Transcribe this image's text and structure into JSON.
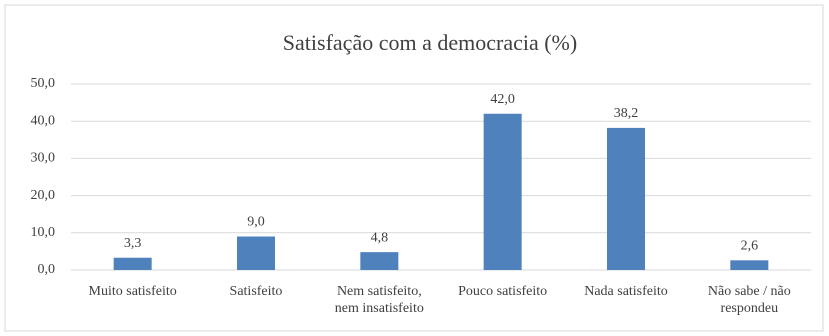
{
  "chart_data": {
    "type": "bar",
    "title": "Satisfação com a democracia (%)",
    "categories": [
      "Muito satisfeito",
      "Satisfeito",
      "Nem satisfeito,\nnem insatisfeito",
      "Pouco satisfeito",
      "Nada satisfeito",
      "Não sabe / não\nrespondeu"
    ],
    "values": [
      3.3,
      9.0,
      4.8,
      42.0,
      38.2,
      2.6
    ],
    "value_labels": [
      "3,3",
      "9,0",
      "4,8",
      "42,0",
      "38,2",
      "2,6"
    ],
    "color": "#4f81bd",
    "ylim": [
      0,
      50
    ],
    "yticks": [
      {
        "value": 0,
        "label": "0,0"
      },
      {
        "value": 10,
        "label": "10,0"
      },
      {
        "value": 20,
        "label": "20,0"
      },
      {
        "value": 30,
        "label": "30,0"
      },
      {
        "value": 40,
        "label": "40,0"
      },
      {
        "value": 50,
        "label": "50,0"
      }
    ],
    "grid": true
  }
}
